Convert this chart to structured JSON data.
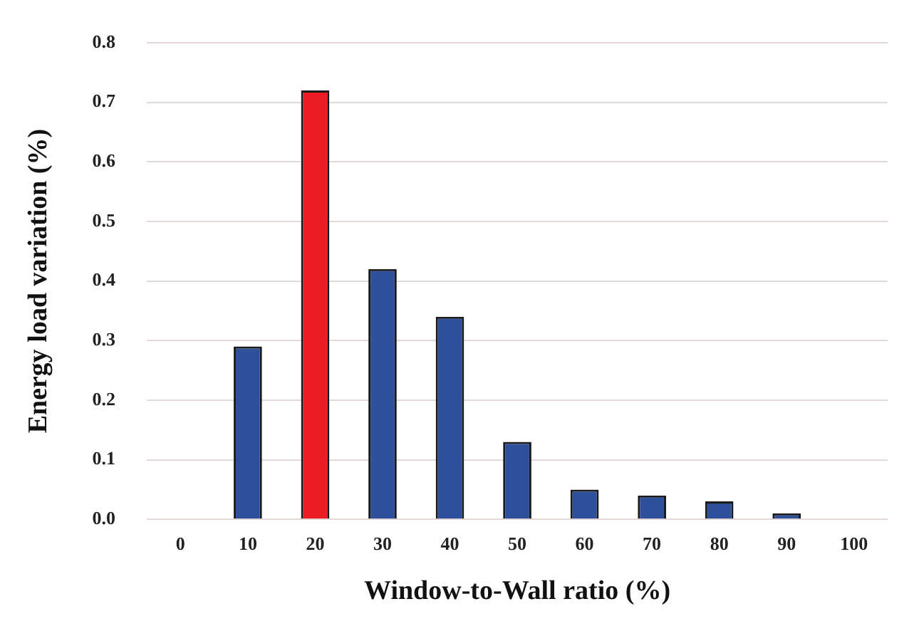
{
  "chart_data": {
    "type": "bar",
    "xlabel": "Window-to-Wall ratio (%)",
    "ylabel": "Energy load variation (%)",
    "categories": [
      "0",
      "10",
      "20",
      "30",
      "40",
      "50",
      "60",
      "70",
      "80",
      "90",
      "100"
    ],
    "values": [
      0,
      0.29,
      0.72,
      0.42,
      0.34,
      0.13,
      0.05,
      0.04,
      0.03,
      0.01,
      0
    ],
    "colors": [
      "#2e4f9a",
      "#2e4f9a",
      "#ec1c24",
      "#2e4f9a",
      "#2e4f9a",
      "#2e4f9a",
      "#2e4f9a",
      "#2e4f9a",
      "#2e4f9a",
      "#2e4f9a",
      "#2e4f9a"
    ],
    "ylim": [
      0,
      0.8
    ],
    "yticks": [
      {
        "value": 0,
        "label": "0.0"
      },
      {
        "value": 0.1,
        "label": "0.1"
      },
      {
        "value": 0.2,
        "label": "0.2"
      },
      {
        "value": 0.3,
        "label": "0.3"
      },
      {
        "value": 0.4,
        "label": "0.4"
      },
      {
        "value": 0.5,
        "label": "0.5"
      },
      {
        "value": 0.6,
        "label": "0.6"
      },
      {
        "value": 0.7,
        "label": "0.7"
      },
      {
        "value": 0.8,
        "label": "0.8"
      }
    ],
    "grid": "y",
    "legend": false
  }
}
